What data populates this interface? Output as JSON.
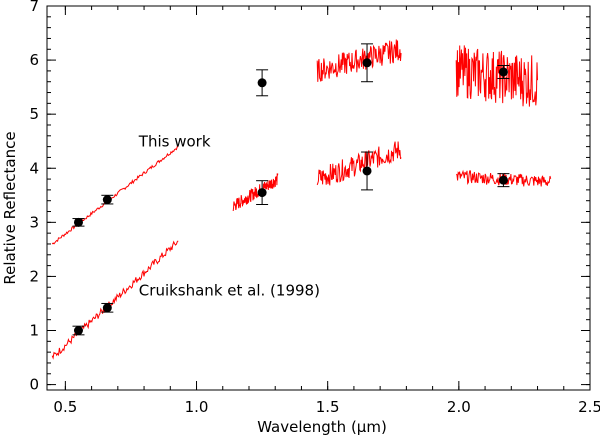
{
  "chart_data": {
    "type": "scatter",
    "xlabel": "Wavelength (µm)",
    "ylabel": "Relative Reflectance",
    "xlim": [
      0.43,
      2.5
    ],
    "ylim": [
      -0.1,
      7.0
    ],
    "xticks": [
      "0.5",
      "1.0",
      "1.5",
      "2.0",
      "2.5"
    ],
    "yticks": [
      "0",
      "1",
      "2",
      "3",
      "4",
      "5",
      "6",
      "7"
    ],
    "xtick_values": [
      0.5,
      1.0,
      1.5,
      2.0,
      2.5
    ],
    "ytick_values": [
      0,
      1,
      2,
      3,
      4,
      5,
      6,
      7
    ],
    "annotations": [
      {
        "text": "This work",
        "x": 0.78,
        "y": 4.4
      },
      {
        "text": "Cruikshank et al. (1998)",
        "x": 0.78,
        "y": 1.65
      }
    ],
    "line_color": "#ff0000",
    "marker_color": "#000000",
    "photometry": [
      {
        "name": "this-work",
        "x": [
          0.55,
          0.66,
          1.25,
          1.65,
          2.17
        ],
        "y": [
          3.0,
          3.42,
          3.55,
          3.95,
          3.78
        ],
        "err": [
          0.07,
          0.08,
          0.22,
          0.35,
          0.12
        ]
      },
      {
        "name": "this-work-upper",
        "x": [
          1.25,
          1.65,
          2.17
        ],
        "y": [
          5.58,
          5.95,
          5.78
        ],
        "err": [
          0.24,
          0.35,
          0.12
        ]
      },
      {
        "name": "cruikshank-1998",
        "x": [
          0.55,
          0.66
        ],
        "y": [
          1.0,
          1.42
        ],
        "err": [
          0.08,
          0.08
        ]
      }
    ],
    "spectra": [
      {
        "name": "this-work-visible",
        "x_range": [
          0.45,
          0.93
        ],
        "y_range": [
          2.6,
          4.4
        ],
        "noise": 0.03
      },
      {
        "name": "cruikshank-visible",
        "x_range": [
          0.45,
          0.93
        ],
        "y_range": [
          0.5,
          2.65
        ],
        "noise": 0.07
      },
      {
        "name": "this-work-J",
        "x_range": [
          1.14,
          1.31
        ],
        "y_range": [
          3.3,
          3.8
        ],
        "noise": 0.12
      },
      {
        "name": "this-work-H",
        "x_range": [
          1.46,
          1.78
        ],
        "y_range": [
          3.8,
          4.35
        ],
        "noise": 0.2
      },
      {
        "name": "this-work-K",
        "x_range": [
          1.99,
          2.35
        ],
        "y_range": [
          3.85,
          3.75
        ],
        "noise": 0.12
      },
      {
        "name": "upper-H",
        "x_range": [
          1.46,
          1.78
        ],
        "y_range": [
          5.8,
          6.2
        ],
        "noise": 0.22
      },
      {
        "name": "upper-K",
        "x_range": [
          1.99,
          2.3
        ],
        "y_range": [
          5.8,
          5.6
        ],
        "noise": 0.5
      }
    ]
  }
}
